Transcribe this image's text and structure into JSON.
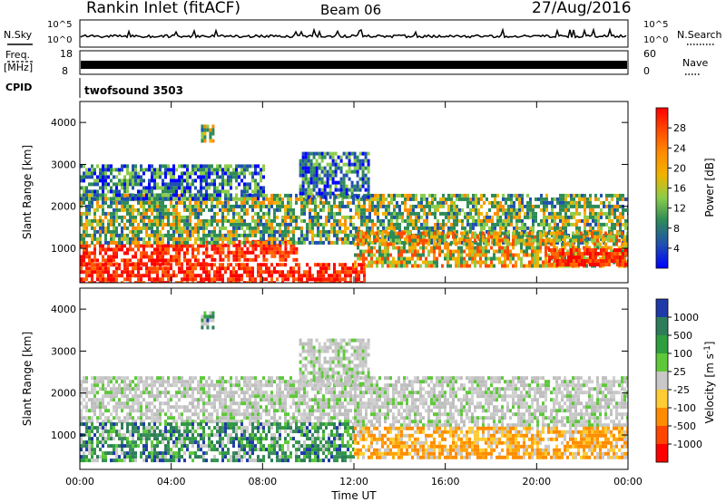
{
  "header": {
    "station": "Rankin Inlet (fitACF)",
    "beam": "Beam 06",
    "date": "27/Aug/2016"
  },
  "status_panel": {
    "nsky_label": "N.Sky",
    "nsky_ticks": [
      "10^5",
      "10^0"
    ],
    "nsearch_label": "N.Search",
    "nsearch_ticks": [
      "10^5",
      "10^0"
    ],
    "freq_label": "Freq.",
    "freq_unit": "[MHz]",
    "freq_ticks": [
      "18",
      "8"
    ],
    "nave_label": "Nave",
    "nave_ticks": [
      "60",
      "0"
    ],
    "cpid_label": "CPID",
    "cpid_value": "twofsound 3503"
  },
  "chart_data": [
    {
      "type": "heatmap",
      "title": "",
      "xlabel": "",
      "ylabel": "Slant Range [km]",
      "x_ticks": [
        "00:00",
        "04:00",
        "08:00",
        "12:00",
        "16:00",
        "20:00",
        "00:00"
      ],
      "x_hours": [
        0,
        24
      ],
      "y_ticks": [
        1000,
        2000,
        3000,
        4000
      ],
      "ylim": [
        180,
        4500
      ],
      "colorbar": {
        "label": "Power [dB]",
        "ticks": [
          "28",
          "24",
          "20",
          "16",
          "12",
          "8",
          "4"
        ],
        "colors": [
          "#ff0000",
          "#ff4a00",
          "#ff8c00",
          "#f0b400",
          "#8ccc4a",
          "#2e8b57",
          "#2050b0",
          "#0000ff"
        ]
      },
      "regions": [
        {
          "t0": 0.0,
          "t1": 12.4,
          "r0": 200,
          "r1": 650,
          "level": "strong"
        },
        {
          "t0": 0.0,
          "t1": 5.5,
          "r0": 600,
          "r1": 1100,
          "level": "strong"
        },
        {
          "t0": 5.5,
          "t1": 9.5,
          "r0": 700,
          "r1": 1200,
          "level": "strong"
        },
        {
          "t0": 0.0,
          "t1": 24.0,
          "r0": 1100,
          "r1": 2300,
          "level": "mixed"
        },
        {
          "t0": 0.0,
          "t1": 8.0,
          "r0": 2200,
          "r1": 3000,
          "level": "weak"
        },
        {
          "t0": 9.6,
          "t1": 12.6,
          "r0": 2200,
          "r1": 3300,
          "level": "weak"
        },
        {
          "t0": 12.0,
          "t1": 24.0,
          "r0": 600,
          "r1": 1400,
          "level": "moderate"
        },
        {
          "t0": 20.5,
          "t1": 24.0,
          "r0": 600,
          "r1": 1000,
          "level": "strong"
        },
        {
          "t0": 5.3,
          "t1": 5.8,
          "r0": 3600,
          "r1": 3950,
          "level": "mixed"
        }
      ]
    },
    {
      "type": "heatmap",
      "title": "",
      "xlabel": "Time UT",
      "ylabel": "Slant Range [km]",
      "x_ticks": [
        "00:00",
        "04:00",
        "08:00",
        "12:00",
        "16:00",
        "20:00",
        "00:00"
      ],
      "x_hours": [
        0,
        24
      ],
      "y_ticks": [
        1000,
        2000,
        3000,
        4000
      ],
      "ylim": [
        180,
        4500
      ],
      "colorbar": {
        "label": "Velocity [m s^-1]",
        "ticks": [
          "1000",
          "500",
          "100",
          "25",
          "-25",
          "-100",
          "-500",
          "-1000"
        ],
        "colors": [
          "#1f3aa8",
          "#2e7d5a",
          "#2e9e3e",
          "#5ec83a",
          "#c8c8c8",
          "#ffcc33",
          "#ff8c00",
          "#ff4500",
          "#ff0000"
        ]
      },
      "regions": [
        {
          "t0": 0.0,
          "t1": 12.0,
          "r0": 1300,
          "r1": 2400,
          "level": "gray"
        },
        {
          "t0": 0.0,
          "t1": 12.0,
          "r0": 400,
          "r1": 1300,
          "level": "green"
        },
        {
          "t0": 12.0,
          "t1": 24.0,
          "r0": 1200,
          "r1": 2400,
          "level": "gray"
        },
        {
          "t0": 12.0,
          "t1": 24.0,
          "r0": 500,
          "r1": 1200,
          "level": "orange"
        },
        {
          "t0": 9.6,
          "t1": 12.6,
          "r0": 2200,
          "r1": 3300,
          "level": "gray"
        },
        {
          "t0": 5.3,
          "t1": 5.8,
          "r0": 3600,
          "r1": 3950,
          "level": "green"
        }
      ]
    }
  ]
}
